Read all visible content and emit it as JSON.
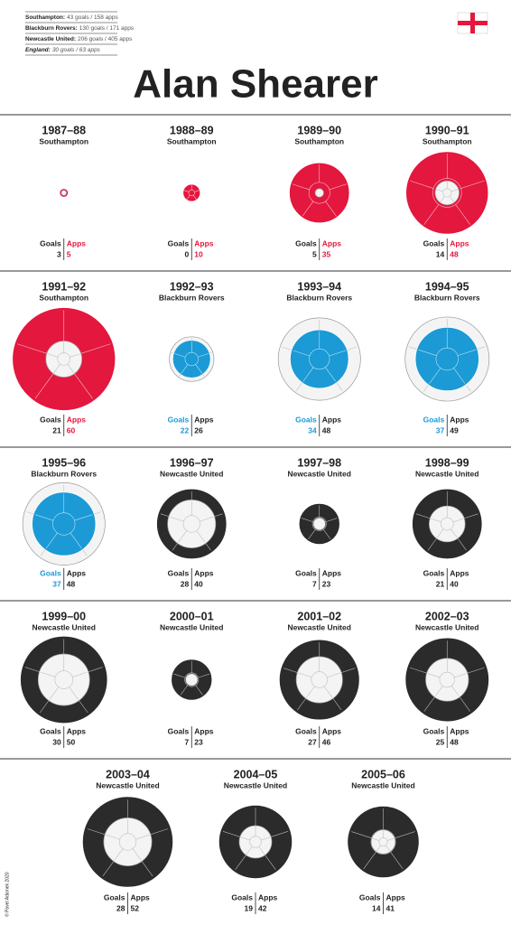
{
  "chart_data": {
    "type": "circles",
    "title": "Alan Shearer",
    "summary": [
      {
        "club": "Southampton:",
        "text": "43 goals / 158 apps"
      },
      {
        "club": "Blackburn Rovers:",
        "text": "130 goals / 171 apps"
      },
      {
        "club": "Newcastle United:",
        "text": "206 goals / 405 apps"
      },
      {
        "club": "England:",
        "text": "30 goals / 63 apps"
      }
    ],
    "categories": [
      "1987–88",
      "1988–89",
      "1989–90",
      "1990–91",
      "1991–92",
      "1992–93",
      "1993–94",
      "1994–95",
      "1995–96",
      "1996–97",
      "1997–98",
      "1998–99",
      "1999–00",
      "2000–01",
      "2001–02",
      "2002–03",
      "2003–04",
      "2004–05",
      "2005–06"
    ],
    "clubs": [
      "Southampton",
      "Southampton",
      "Southampton",
      "Southampton",
      "Southampton",
      "Blackburn Rovers",
      "Blackburn Rovers",
      "Blackburn Rovers",
      "Blackburn Rovers",
      "Newcastle United",
      "Newcastle United",
      "Newcastle United",
      "Newcastle United",
      "Newcastle United",
      "Newcastle United",
      "Newcastle United",
      "Newcastle United",
      "Newcastle United",
      "Newcastle United"
    ],
    "series": [
      {
        "name": "Goals",
        "values": [
          3,
          0,
          5,
          14,
          21,
          22,
          34,
          37,
          37,
          28,
          7,
          21,
          30,
          7,
          27,
          25,
          28,
          19,
          14
        ],
        "colors": [
          "#f4f4f4",
          "#f4f4f4",
          "#f4f4f4",
          "#f4f4f4",
          "#f4f4f4",
          "#1b9ad6",
          "#1b9ad6",
          "#1b9ad6",
          "#1b9ad6",
          "#f4f4f4",
          "#f4f4f4",
          "#f4f4f4",
          "#f4f4f4",
          "#f4f4f4",
          "#f4f4f4",
          "#f4f4f4",
          "#f4f4f4",
          "#f4f4f4",
          "#f4f4f4"
        ],
        "label_colors": [
          null,
          null,
          null,
          null,
          null,
          "#1b9ad6",
          "#1b9ad6",
          "#1b9ad6",
          "#1b9ad6",
          null,
          null,
          null,
          null,
          null,
          null,
          null,
          null,
          null,
          null
        ]
      },
      {
        "name": "Apps",
        "values": [
          5,
          10,
          35,
          48,
          60,
          26,
          48,
          49,
          48,
          40,
          23,
          40,
          50,
          23,
          46,
          48,
          52,
          42,
          41
        ],
        "colors": [
          "#e4173e",
          "#e4173e",
          "#e4173e",
          "#e4173e",
          "#e4173e",
          "#f4f4f4",
          "#f4f4f4",
          "#f4f4f4",
          "#f4f4f4",
          "#2b2b2b",
          "#2b2b2b",
          "#2b2b2b",
          "#2b2b2b",
          "#2b2b2b",
          "#2b2b2b",
          "#2b2b2b",
          "#2b2b2b",
          "#2b2b2b",
          "#2b2b2b"
        ],
        "label_colors": [
          "#e4173e",
          "#e4173e",
          "#e4173e",
          "#e4173e",
          "#e4173e",
          null,
          null,
          null,
          null,
          null,
          null,
          null,
          null,
          null,
          null,
          null,
          null,
          null,
          null
        ]
      }
    ],
    "credit": "© Pavel Adamek 2020"
  }
}
